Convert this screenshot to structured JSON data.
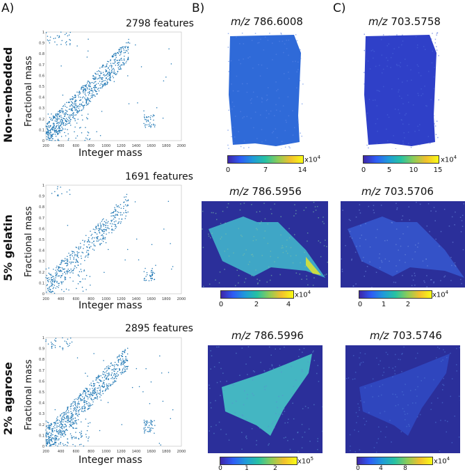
{
  "panels": {
    "a": "A)",
    "b": "B)",
    "c": "C)"
  },
  "rows": [
    "Non-embedded",
    "5% gelatin",
    "2% agarose"
  ],
  "axes": {
    "xlabel": "Integer mass",
    "ylabel": "Fractional mass"
  },
  "scatter_titles": [
    "2798 features",
    "1691 features",
    "2895 features"
  ],
  "msi_titles": {
    "b": [
      "786.6008",
      "786.5956",
      "786.5996"
    ],
    "c": [
      "703.5758",
      "703.5706",
      "703.5746"
    ],
    "mz": "m/z"
  },
  "colorbars": {
    "b": [
      {
        "ticks": [
          "0",
          "7",
          "14"
        ],
        "exp_base": "x10",
        "exp_pow": "4"
      },
      {
        "ticks": [
          "0",
          "2",
          "4"
        ],
        "exp_base": "x10",
        "exp_pow": "4"
      },
      {
        "ticks": [
          "0",
          "1",
          "2"
        ],
        "exp_base": "x10",
        "exp_pow": "5"
      }
    ],
    "c": [
      {
        "ticks": [
          "0",
          "5",
          "10",
          "15"
        ],
        "exp_base": "x10",
        "exp_pow": "4"
      },
      {
        "ticks": [
          "0",
          "1",
          "2"
        ],
        "exp_base": "x10",
        "exp_pow": "4"
      },
      {
        "ticks": [
          "0",
          "4",
          "8"
        ],
        "exp_base": "x10",
        "exp_pow": "4"
      }
    ]
  },
  "chart_data": [
    {
      "type": "scatter",
      "title": "2798 features",
      "xlabel": "Integer mass",
      "ylabel": "Fractional mass",
      "xlim": [
        200,
        2000
      ],
      "ylim": [
        0,
        1
      ],
      "xticks": [
        "200",
        "400",
        "600",
        "800",
        "1000",
        "1200",
        "1400",
        "1600",
        "1800",
        "2000"
      ],
      "yticks": [
        "0",
        "0.1",
        "0.2",
        "0.3",
        "0.4",
        "0.5",
        "0.6",
        "0.7",
        "0.8",
        "0.9",
        "1"
      ]
    },
    {
      "type": "scatter",
      "title": "1691 features",
      "xlabel": "Integer mass",
      "ylabel": "Fractional mass",
      "xlim": [
        200,
        2000
      ],
      "ylim": [
        0,
        1
      ],
      "xticks": [
        "200",
        "400",
        "600",
        "800",
        "1000",
        "1200",
        "1400",
        "1600",
        "1800",
        "2000"
      ],
      "yticks": [
        "0",
        "0.1",
        "0.2",
        "0.3",
        "0.4",
        "0.5",
        "0.6",
        "0.7",
        "0.8",
        "0.9",
        "1"
      ]
    },
    {
      "type": "scatter",
      "title": "2895 features",
      "xlabel": "Integer mass",
      "ylabel": "Fractional mass",
      "xlim": [
        200,
        2000
      ],
      "ylim": [
        0,
        1
      ],
      "xticks": [
        "200",
        "400",
        "600",
        "800",
        "1000",
        "1200",
        "1400",
        "1600",
        "1800",
        "2000"
      ],
      "yticks": [
        "0",
        "0.1",
        "0.2",
        "0.3",
        "0.4",
        "0.5",
        "0.6",
        "0.7",
        "0.8",
        "0.9",
        "1"
      ]
    }
  ],
  "colors": {
    "points": "#1f77b4",
    "msi_bg": "#2b2f9a"
  }
}
